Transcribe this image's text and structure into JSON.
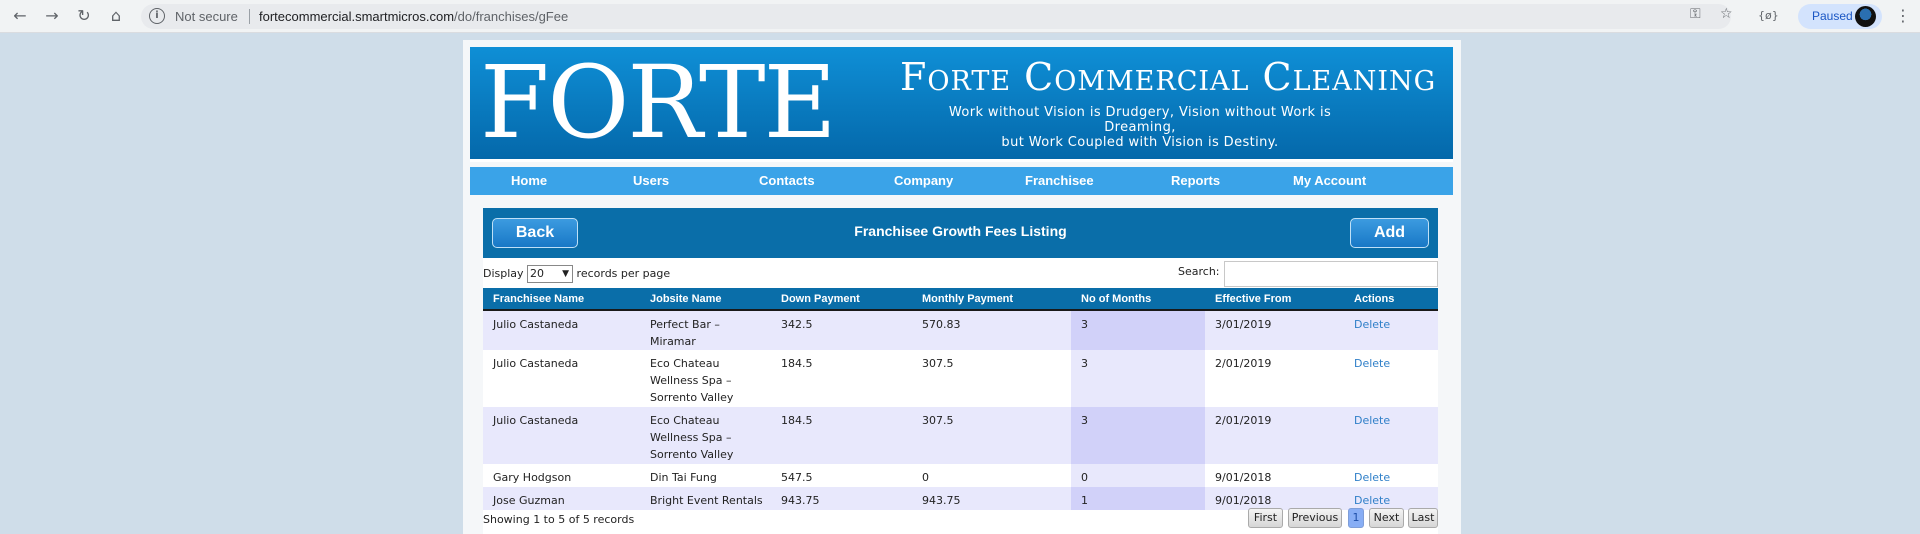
{
  "browser": {
    "security_label": "Not secure",
    "url_host": "fortecommercial.smartmicros.com",
    "url_path": "/do/franchises/gFee",
    "profile_label": "Paused"
  },
  "banner": {
    "logo_text": "FORTE",
    "title": "Forte Commercial Cleaning",
    "tagline_line1": "Work without Vision is Drudgery, Vision without Work is Dreaming,",
    "tagline_line2": "but Work Coupled with Vision is Destiny."
  },
  "menu": {
    "home": "Home",
    "users": "Users",
    "contacts": "Contacts",
    "company": "Company",
    "franchisee": "Franchisee",
    "reports": "Reports",
    "my_account": "My Account"
  },
  "panel": {
    "back_label": "Back",
    "title": "Franchisee Growth Fees Listing",
    "add_label": "Add"
  },
  "controls": {
    "display_label": "Display",
    "records_value": "20",
    "records_suffix": "records per page",
    "search_label": "Search:",
    "search_value": ""
  },
  "table": {
    "headers": [
      "Franchisee Name",
      "Jobsite Name",
      "Down Payment",
      "Monthly Payment",
      "No of Months",
      "Effective From",
      "Actions"
    ],
    "rows": [
      {
        "franchisee": "Julio Castaneda",
        "jobsite_l1": "Perfect Bar –",
        "jobsite_l2": "Miramar",
        "jobsite_l3": "",
        "down": "342.5",
        "monthly": "570.83",
        "months": "3",
        "effective": "3/01/2019",
        "action": "Delete"
      },
      {
        "franchisee": "Julio Castaneda",
        "jobsite_l1": "Eco Chateau",
        "jobsite_l2": "Wellness Spa –",
        "jobsite_l3": "Sorrento Valley",
        "down": "184.5",
        "monthly": "307.5",
        "months": "3",
        "effective": "2/01/2019",
        "action": "Delete"
      },
      {
        "franchisee": "Julio Castaneda",
        "jobsite_l1": "Eco Chateau",
        "jobsite_l2": "Wellness Spa –",
        "jobsite_l3": "Sorrento Valley",
        "down": "184.5",
        "monthly": "307.5",
        "months": "3",
        "effective": "2/01/2019",
        "action": "Delete"
      },
      {
        "franchisee": "Gary Hodgson",
        "jobsite_l1": "Din Tai Fung",
        "jobsite_l2": "",
        "jobsite_l3": "",
        "down": "547.5",
        "monthly": "0",
        "months": "0",
        "effective": "9/01/2018",
        "action": "Delete"
      },
      {
        "franchisee": "Jose Guzman",
        "jobsite_l1": "Bright Event Rentals",
        "jobsite_l2": "",
        "jobsite_l3": "",
        "down": "943.75",
        "monthly": "943.75",
        "months": "1",
        "effective": "9/01/2018",
        "action": "Delete"
      }
    ]
  },
  "footer": {
    "info": "Showing 1 to 5 of 5 records",
    "first": "First",
    "previous": "Previous",
    "page": "1",
    "next": "Next",
    "last": "Last"
  }
}
